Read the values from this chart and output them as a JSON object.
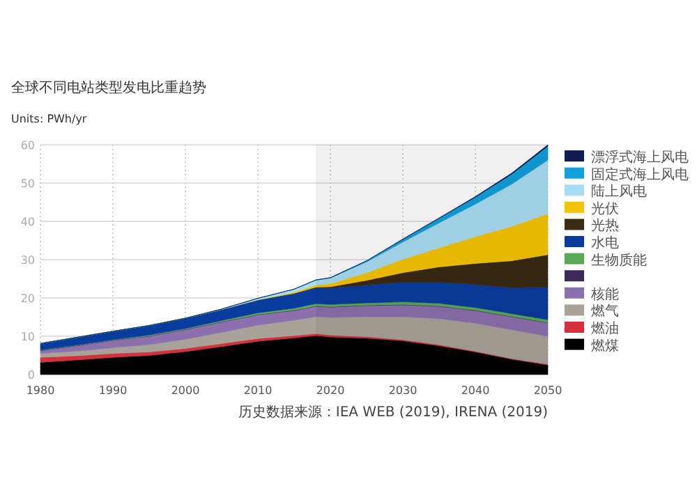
{
  "chart_data": {
    "type": "area",
    "stacked": true,
    "title": "全球不同电站类型发电比重趋势",
    "subtitle": "Units: PWh/yr",
    "annotations": [
      "历史数据来源：IEA WEB (2019), IRENA (2019)"
    ],
    "x": [
      1980,
      1985,
      1990,
      1995,
      2000,
      2005,
      2010,
      2015,
      2018,
      2020,
      2025,
      2030,
      2035,
      2040,
      2045,
      2050
    ],
    "xlim": [
      1980,
      2050
    ],
    "xticks": [
      1980,
      1990,
      2000,
      2010,
      2020,
      2030,
      2040,
      2050
    ],
    "ylim": [
      0,
      60
    ],
    "yticks": [
      0,
      10,
      20,
      30,
      40,
      50,
      60
    ],
    "grid": true,
    "legend": "right",
    "bands": [
      {
        "axis": "x",
        "from": 2018,
        "to": 2050,
        "color": "#000000"
      }
    ],
    "series": [
      {
        "name": "燃煤",
        "color": "#000000",
        "values": [
          3.2,
          3.8,
          4.5,
          5.0,
          6.0,
          7.3,
          8.7,
          9.6,
          10.2,
          9.8,
          9.5,
          8.8,
          7.5,
          5.9,
          4.0,
          2.5
        ]
      },
      {
        "name": "燃油",
        "color": "#d2323c",
        "values": [
          1.3,
          1.1,
          1.0,
          0.9,
          0.8,
          0.8,
          0.7,
          0.6,
          0.5,
          0.5,
          0.4,
          0.3,
          0.3,
          0.2,
          0.2,
          0.2
        ]
      },
      {
        "name": "燃气",
        "color": "#a8a29b",
        "values": [
          1.0,
          1.2,
          1.5,
          1.9,
          2.4,
          2.9,
          3.5,
          4.0,
          4.4,
          4.6,
          5.2,
          6.0,
          6.8,
          7.3,
          7.5,
          7.3
        ]
      },
      {
        "name": "核能",
        "color": "#8c70ad",
        "values": [
          0.7,
          1.4,
          1.9,
          2.2,
          2.5,
          2.7,
          2.7,
          2.5,
          2.7,
          2.7,
          2.9,
          3.1,
          3.2,
          3.3,
          3.4,
          3.5
        ]
      },
      {
        "color": "#3b2a5a",
        "values": [
          0.1,
          0.1,
          0.1,
          0.1,
          0.1,
          0.1,
          0.1,
          0.1,
          0.1,
          0.1,
          0.1,
          0.1,
          0.1,
          0.1,
          0.1,
          0.1
        ]
      },
      {
        "name": "生物质能",
        "color": "#5aaa55",
        "values": [
          0.1,
          0.1,
          0.1,
          0.2,
          0.2,
          0.3,
          0.4,
          0.5,
          0.6,
          0.6,
          0.6,
          0.7,
          0.7,
          0.7,
          0.7,
          0.7
        ]
      },
      {
        "name": "水电",
        "color": "#0a3c9e",
        "values": [
          1.7,
          2.0,
          2.2,
          2.5,
          2.7,
          2.9,
          3.4,
          3.9,
          4.2,
          4.3,
          4.7,
          5.1,
          5.5,
          6.0,
          6.8,
          8.5
        ]
      },
      {
        "name": "光热",
        "color": "#3b2a14",
        "values": [
          0,
          0,
          0,
          0,
          0,
          0,
          0,
          0,
          0.1,
          0.3,
          1.2,
          2.5,
          4.0,
          5.5,
          7.0,
          8.5
        ]
      },
      {
        "name": "光伏",
        "color": "#f5c400",
        "values": [
          0,
          0,
          0,
          0,
          0,
          0,
          0,
          0.3,
          0.6,
          0.8,
          2.0,
          3.5,
          5.0,
          7.0,
          9.0,
          10.7
        ]
      },
      {
        "name": "陆上风电",
        "color": "#a8dcf2",
        "values": [
          0,
          0,
          0,
          0,
          0,
          0.1,
          0.4,
          0.8,
          1.2,
          1.5,
          2.8,
          4.5,
          6.5,
          8.5,
          11.0,
          14.0
        ]
      },
      {
        "name": "固定式海上风电",
        "color": "#12a0dc",
        "values": [
          0,
          0,
          0,
          0,
          0,
          0,
          0,
          0,
          0.1,
          0.1,
          0.3,
          0.7,
          1.2,
          1.8,
          2.6,
          3.6
        ]
      },
      {
        "name": "漂浮式海上风电",
        "color": "#0e1f4d",
        "values": [
          0,
          0,
          0,
          0,
          0,
          0,
          0,
          0,
          0,
          0,
          0,
          0.1,
          0.1,
          0.2,
          0.3,
          0.4
        ]
      }
    ]
  }
}
